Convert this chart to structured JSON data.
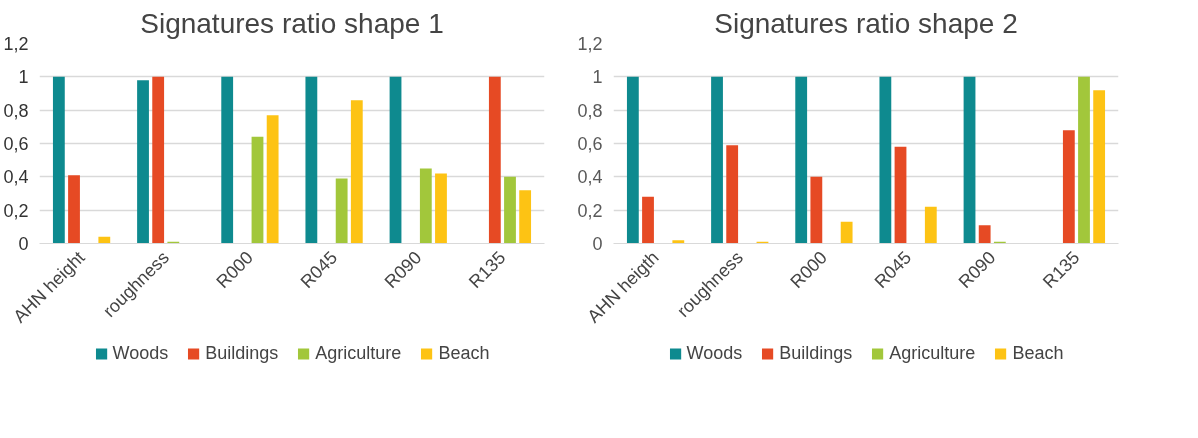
{
  "chart_data": [
    {
      "type": "bar",
      "title": "Signatures ratio shape 1",
      "categories": [
        "AHN height",
        "roughness",
        "R000",
        "R045",
        "R090",
        "R135"
      ],
      "series": [
        {
          "name": "Woods",
          "color": "#0e8a8f",
          "values": [
            1,
            0.98,
            1,
            1,
            1,
            0
          ]
        },
        {
          "name": "Buildings",
          "color": "#e64a24",
          "values": [
            0.41,
            1,
            0,
            0,
            0,
            1
          ]
        },
        {
          "name": "Agriculture",
          "color": "#a2c73b",
          "values": [
            0,
            0.01,
            0.64,
            0.39,
            0.45,
            0.4
          ]
        },
        {
          "name": "Beach",
          "color": "#fdc314",
          "values": [
            0.04,
            0,
            0.77,
            0.86,
            0.42,
            0.32
          ]
        }
      ],
      "ylim": [
        0,
        1.2
      ],
      "yticks": [
        0,
        {
          "value": 0.2,
          "label": "0,2"
        },
        {
          "value": 0.4,
          "label": "0,4"
        },
        {
          "value": 0.6,
          "label": "0,6"
        },
        {
          "value": 0.8,
          "label": "0,8"
        },
        1,
        {
          "value": 1.2,
          "label": "1,2"
        }
      ],
      "grid": "y",
      "legend": "bottom"
    },
    {
      "type": "bar",
      "title": "Signatures ratio shape 2",
      "categories": [
        "AHN heigth",
        "roughness",
        "R000",
        "R045",
        "R090",
        "R135"
      ],
      "series": [
        {
          "name": "Woods",
          "color": "#0e8a8f",
          "values": [
            1,
            1,
            1,
            1,
            1,
            0
          ]
        },
        {
          "name": "Buildings",
          "color": "#e64a24",
          "values": [
            0.28,
            0.59,
            0.4,
            0.58,
            0.11,
            0.68
          ]
        },
        {
          "name": "Agriculture",
          "color": "#a2c73b",
          "values": [
            0,
            0,
            0,
            0,
            0.01,
            1
          ]
        },
        {
          "name": "Beach",
          "color": "#fdc314",
          "values": [
            0.02,
            0.01,
            0.13,
            0.22,
            0,
            0.92
          ]
        }
      ],
      "ylim": [
        0,
        1.2
      ],
      "yticks": [
        0,
        {
          "value": 0.2,
          "label": "0,2"
        },
        {
          "value": 0.4,
          "label": "0,4"
        },
        {
          "value": 0.6,
          "label": "0,6"
        },
        {
          "value": 0.8,
          "label": "0,8"
        },
        1,
        {
          "value": 1.2,
          "label": "1,2"
        }
      ],
      "grid": "y",
      "legend": "bottom"
    }
  ]
}
